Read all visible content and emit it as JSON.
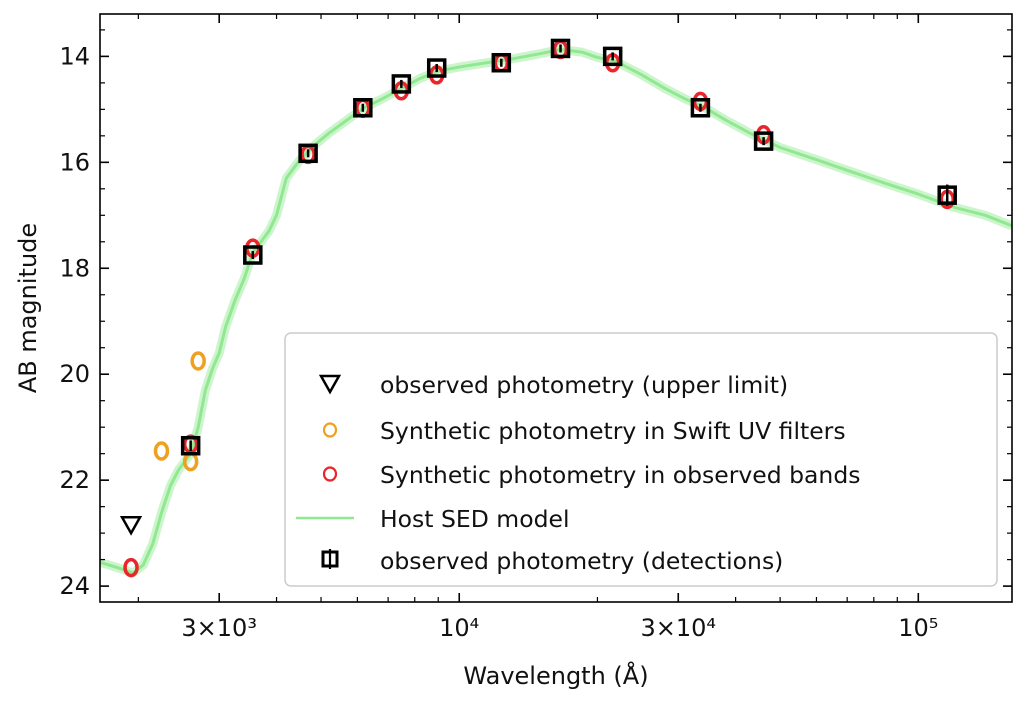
{
  "chart_data": {
    "type": "scatter",
    "xlabel": "Wavelength (Å)",
    "ylabel": "AB magnitude",
    "xscale": "log",
    "yaxis_inverted": true,
    "xlim": [
      1650,
      160000
    ],
    "ylim": [
      24.3,
      13.2
    ],
    "x_ticks": [
      {
        "value": 3000,
        "label": "3×10³"
      },
      {
        "value": 10000,
        "label": "10⁴"
      },
      {
        "value": 30000,
        "label": "3×10⁴"
      },
      {
        "value": 100000,
        "label": "10⁵"
      }
    ],
    "y_ticks": [
      14,
      16,
      18,
      20,
      22,
      24
    ],
    "legend": {
      "placement": "lower-right",
      "entries": [
        {
          "label": "observed photometry (upper limit)",
          "marker": "triangle-down",
          "color": "#000000"
        },
        {
          "label": "Synthetic photometry in Swift UV filters",
          "marker": "circle-open",
          "color": "#f0a020"
        },
        {
          "label": "Synthetic photometry in observed bands",
          "marker": "circle-open",
          "color": "#e8262b"
        },
        {
          "label": "Host SED model",
          "marker": "line",
          "color": "#90e890"
        },
        {
          "label": "observed photometry (detections)",
          "marker": "square-errorbar",
          "color": "#000000"
        }
      ]
    },
    "series": [
      {
        "name": "observed photometry (upper limit)",
        "points": [
          {
            "x": 1928,
            "y": 22.85
          }
        ]
      },
      {
        "name": "Synthetic photometry in Swift UV filters",
        "points": [
          {
            "x": 2246,
            "y": 21.45
          },
          {
            "x": 2600,
            "y": 21.65
          },
          {
            "x": 2700,
            "y": 19.75
          }
        ]
      },
      {
        "name": "Synthetic photometry in observed bands",
        "points": [
          {
            "x": 1928,
            "y": 23.65
          },
          {
            "x": 2600,
            "y": 21.32
          },
          {
            "x": 3551,
            "y": 17.62
          },
          {
            "x": 4686,
            "y": 15.85
          },
          {
            "x": 6166,
            "y": 14.98
          },
          {
            "x": 7480,
            "y": 14.65
          },
          {
            "x": 8932,
            "y": 14.35
          },
          {
            "x": 12350,
            "y": 14.12
          },
          {
            "x": 16620,
            "y": 13.87
          },
          {
            "x": 21590,
            "y": 14.12
          },
          {
            "x": 33526,
            "y": 14.85
          },
          {
            "x": 46028,
            "y": 15.48
          },
          {
            "x": 115608,
            "y": 16.7
          }
        ]
      },
      {
        "name": "observed photometry (detections)",
        "points": [
          {
            "x": 2600,
            "y": 21.35,
            "yerr": 0.1
          },
          {
            "x": 3551,
            "y": 17.75,
            "yerr": 0.05
          },
          {
            "x": 4686,
            "y": 15.83,
            "yerr": 0.05
          },
          {
            "x": 6166,
            "y": 14.97,
            "yerr": 0.05
          },
          {
            "x": 7480,
            "y": 14.52,
            "yerr": 0.05
          },
          {
            "x": 8932,
            "y": 14.22,
            "yerr": 0.05
          },
          {
            "x": 12350,
            "y": 14.12,
            "yerr": 0.05
          },
          {
            "x": 16620,
            "y": 13.85,
            "yerr": 0.05
          },
          {
            "x": 21590,
            "y": 14.0,
            "yerr": 0.05
          },
          {
            "x": 33526,
            "y": 14.97,
            "yerr": 0.05
          },
          {
            "x": 46028,
            "y": 15.6,
            "yerr": 0.05
          },
          {
            "x": 115608,
            "y": 16.62,
            "yerr": 0.2
          }
        ]
      },
      {
        "name": "Host SED model",
        "line": [
          {
            "x": 1650,
            "y": 23.55
          },
          {
            "x": 1800,
            "y": 23.65
          },
          {
            "x": 1950,
            "y": 23.75
          },
          {
            "x": 2050,
            "y": 23.6
          },
          {
            "x": 2150,
            "y": 23.2
          },
          {
            "x": 2250,
            "y": 22.6
          },
          {
            "x": 2350,
            "y": 22.1
          },
          {
            "x": 2450,
            "y": 21.8
          },
          {
            "x": 2600,
            "y": 21.5
          },
          {
            "x": 2700,
            "y": 21.0
          },
          {
            "x": 2800,
            "y": 20.3
          },
          {
            "x": 2900,
            "y": 19.9
          },
          {
            "x": 3000,
            "y": 19.6
          },
          {
            "x": 3100,
            "y": 19.1
          },
          {
            "x": 3250,
            "y": 18.6
          },
          {
            "x": 3400,
            "y": 18.2
          },
          {
            "x": 3550,
            "y": 17.7
          },
          {
            "x": 3700,
            "y": 17.5
          },
          {
            "x": 3850,
            "y": 17.3
          },
          {
            "x": 4000,
            "y": 17.0
          },
          {
            "x": 4200,
            "y": 16.3
          },
          {
            "x": 4500,
            "y": 15.95
          },
          {
            "x": 4800,
            "y": 15.7
          },
          {
            "x": 5200,
            "y": 15.45
          },
          {
            "x": 5700,
            "y": 15.2
          },
          {
            "x": 6200,
            "y": 14.97
          },
          {
            "x": 6800,
            "y": 14.8
          },
          {
            "x": 7500,
            "y": 14.6
          },
          {
            "x": 8200,
            "y": 14.42
          },
          {
            "x": 9000,
            "y": 14.28
          },
          {
            "x": 10000,
            "y": 14.2
          },
          {
            "x": 11500,
            "y": 14.12
          },
          {
            "x": 13000,
            "y": 14.05
          },
          {
            "x": 15000,
            "y": 13.95
          },
          {
            "x": 16600,
            "y": 13.87
          },
          {
            "x": 18500,
            "y": 13.92
          },
          {
            "x": 20000,
            "y": 14.02
          },
          {
            "x": 22000,
            "y": 14.1
          },
          {
            "x": 25000,
            "y": 14.35
          },
          {
            "x": 28000,
            "y": 14.6
          },
          {
            "x": 31000,
            "y": 14.8
          },
          {
            "x": 34000,
            "y": 14.95
          },
          {
            "x": 38000,
            "y": 15.2
          },
          {
            "x": 43000,
            "y": 15.45
          },
          {
            "x": 50000,
            "y": 15.72
          },
          {
            "x": 60000,
            "y": 15.95
          },
          {
            "x": 70000,
            "y": 16.15
          },
          {
            "x": 85000,
            "y": 16.4
          },
          {
            "x": 100000,
            "y": 16.6
          },
          {
            "x": 120000,
            "y": 16.85
          },
          {
            "x": 140000,
            "y": 17.0
          },
          {
            "x": 160000,
            "y": 17.2
          }
        ]
      }
    ]
  }
}
